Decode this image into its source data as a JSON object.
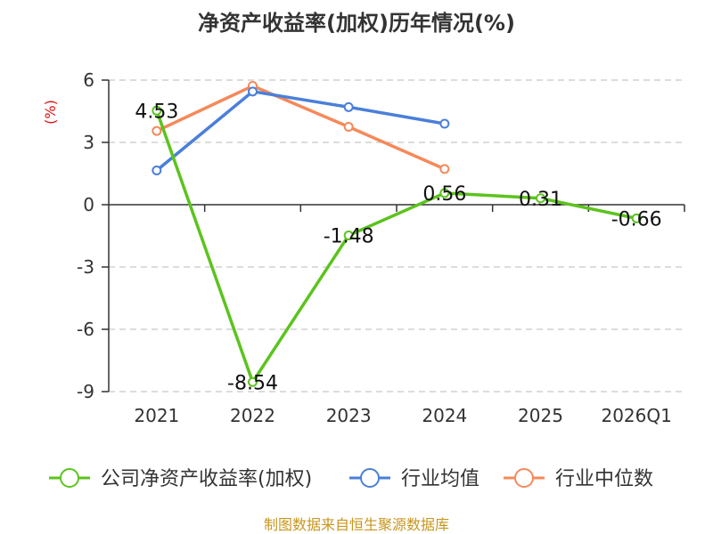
{
  "chart_data": {
    "type": "line",
    "title": "净资产收益率(加权)历年情况(%)",
    "ylabel": "(%)",
    "xlabel": "",
    "categories": [
      "2021",
      "2022",
      "2023",
      "2024",
      "2025",
      "2026Q1"
    ],
    "ylim": [
      -9,
      6
    ],
    "yticks": [
      6,
      3,
      0,
      -3,
      -6,
      -9
    ],
    "grid": true,
    "legend_position": "bottom",
    "series": [
      {
        "name": "公司净资产收益率(加权)",
        "color": "#5cc31e",
        "values": [
          4.53,
          -8.54,
          -1.48,
          0.56,
          0.31,
          -0.66
        ],
        "labels": [
          "4.53",
          "-8.54",
          "-1.48",
          "0.56",
          "0.31",
          "-0.66"
        ]
      },
      {
        "name": "行业均值",
        "color": "#4a7fd9",
        "values": [
          1.65,
          5.45,
          4.7,
          3.9,
          null,
          null
        ]
      },
      {
        "name": "行业中位数",
        "color": "#f5895a",
        "values": [
          3.55,
          5.72,
          3.75,
          1.72,
          null,
          null
        ]
      }
    ],
    "source": "制图数据来自恒生聚源数据库"
  }
}
